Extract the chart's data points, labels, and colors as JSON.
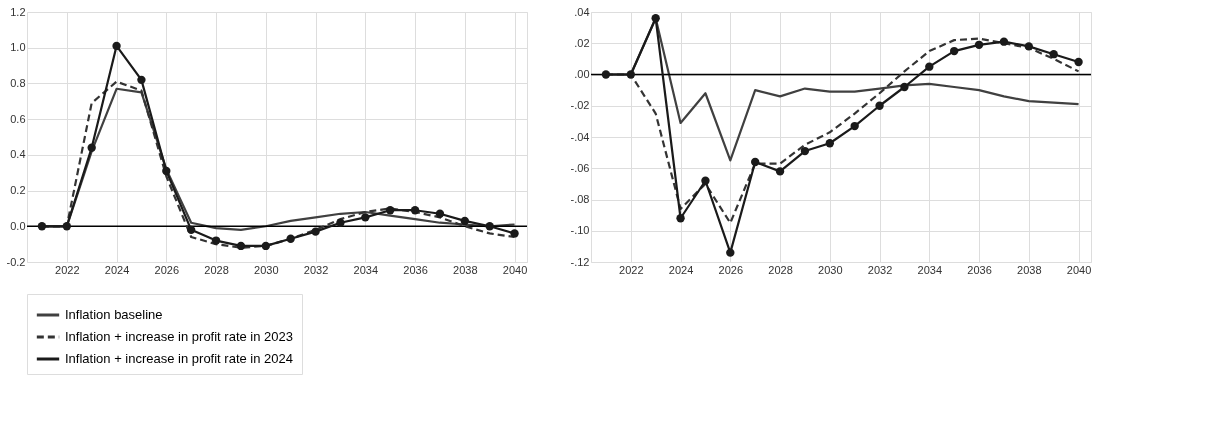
{
  "chart_data": [
    {
      "type": "line",
      "x": [
        2021,
        2022,
        2023,
        2024,
        2025,
        2026,
        2027,
        2028,
        2029,
        2030,
        2031,
        2032,
        2033,
        2034,
        2035,
        2036,
        2037,
        2038,
        2039,
        2040
      ],
      "xlim": [
        2020.4,
        2040.5
      ],
      "xticks": [
        2022,
        2024,
        2026,
        2028,
        2030,
        2032,
        2034,
        2036,
        2038,
        2040
      ],
      "ylim": [
        -0.2,
        1.2
      ],
      "yticks": [
        {
          "value": -0.2,
          "label": "-0.2"
        },
        {
          "value": 0,
          "label": "0.0"
        },
        0.2,
        0.4,
        0.6,
        0.8,
        {
          "value": 1,
          "label": "1.0"
        },
        1.2
      ],
      "grid": true,
      "legend": "bottom",
      "ref_lines": [
        {
          "axis": "y",
          "value": 0,
          "color": "#000000"
        }
      ],
      "series": [
        {
          "name": "Inflation baseline",
          "color": "#404040",
          "line_style": "solid",
          "marker": "none",
          "values": [
            0,
            0,
            0.42,
            0.77,
            0.75,
            0.32,
            0.02,
            -0.01,
            -0.02,
            0.0,
            0.03,
            0.05,
            0.07,
            0.08,
            0.06,
            0.04,
            0.02,
            0.01,
            0.0,
            0.01
          ]
        },
        {
          "name": "Inflation + increase in profit rate in 2023",
          "color": "#333333",
          "line_style": "dashed",
          "marker": "none",
          "values": [
            0,
            0,
            0.69,
            0.81,
            0.76,
            0.28,
            -0.06,
            -0.1,
            -0.12,
            -0.11,
            -0.07,
            -0.02,
            0.04,
            0.08,
            0.1,
            0.08,
            0.05,
            0.0,
            -0.04,
            -0.06
          ]
        },
        {
          "name": "Inflation + increase in profit rate in 2024",
          "color": "#1a1a1a",
          "line_style": "solid",
          "marker": "circle",
          "values": [
            0,
            0,
            0.44,
            1.01,
            0.82,
            0.31,
            -0.02,
            -0.08,
            -0.11,
            -0.11,
            -0.07,
            -0.03,
            0.02,
            0.05,
            0.09,
            0.09,
            0.07,
            0.03,
            0.0,
            -0.04
          ]
        }
      ]
    },
    {
      "type": "line",
      "x": [
        2021,
        2022,
        2023,
        2024,
        2025,
        2026,
        2027,
        2028,
        2029,
        2030,
        2031,
        2032,
        2033,
        2034,
        2035,
        2036,
        2037,
        2038,
        2039,
        2040
      ],
      "xlim": [
        2020.4,
        2040.5
      ],
      "xticks": [
        2022,
        2024,
        2026,
        2028,
        2030,
        2032,
        2034,
        2036,
        2038,
        2040
      ],
      "ylim": [
        -0.12,
        0.04
      ],
      "yticks": [
        {
          "value": -0.12,
          "label": "-.12"
        },
        {
          "value": -0.1,
          "label": "-.10"
        },
        {
          "value": -0.08,
          "label": "-.08"
        },
        {
          "value": -0.06,
          "label": "-.06"
        },
        {
          "value": -0.04,
          "label": "-.04"
        },
        {
          "value": -0.02,
          "label": "-.02"
        },
        {
          "value": 0,
          "label": ".00"
        },
        {
          "value": 0.02,
          "label": ".02"
        },
        {
          "value": 0.04,
          "label": ".04"
        }
      ],
      "grid": true,
      "legend": "bottom",
      "ref_lines": [
        {
          "axis": "y",
          "value": 0,
          "color": "#000000"
        }
      ],
      "series": [
        {
          "name": "Inflation baseline",
          "color": "#404040",
          "line_style": "solid",
          "marker": "none",
          "values": [
            0,
            0,
            0.036,
            -0.031,
            -0.012,
            -0.055,
            -0.01,
            -0.014,
            -0.009,
            -0.011,
            -0.011,
            -0.009,
            -0.007,
            -0.006,
            -0.008,
            -0.01,
            -0.014,
            -0.017,
            -0.018,
            -0.019
          ]
        },
        {
          "name": "Inflation + increase in profit rate in 2023",
          "color": "#333333",
          "line_style": "dashed",
          "marker": "none",
          "values": [
            0,
            0,
            -0.025,
            -0.086,
            -0.07,
            -0.095,
            -0.057,
            -0.057,
            -0.045,
            -0.037,
            -0.025,
            -0.012,
            0.002,
            0.015,
            0.022,
            0.023,
            0.02,
            0.017,
            0.01,
            0.002
          ]
        },
        {
          "name": "Inflation + increase in profit rate in 2024",
          "color": "#1a1a1a",
          "line_style": "solid",
          "marker": "circle",
          "values": [
            0,
            0,
            0.036,
            -0.092,
            -0.068,
            -0.114,
            -0.056,
            -0.062,
            -0.049,
            -0.044,
            -0.033,
            -0.02,
            -0.008,
            0.005,
            0.015,
            0.019,
            0.021,
            0.018,
            0.013,
            0.008
          ]
        }
      ]
    }
  ]
}
